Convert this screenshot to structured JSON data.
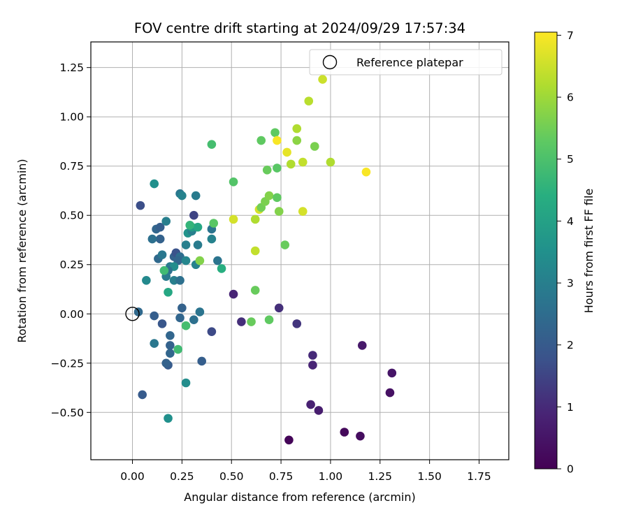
{
  "chart_data": {
    "type": "scatter",
    "title": "FOV centre drift starting at 2024/09/29 17:57:34",
    "xlabel": "Angular distance from reference (arcmin)",
    "ylabel": "Rotation from reference (arcmin)",
    "xlim": [
      -0.21,
      1.9
    ],
    "ylim": [
      -0.74,
      1.38
    ],
    "xticks": [
      "0.00",
      "0.25",
      "0.50",
      "0.75",
      "1.00",
      "1.25",
      "1.50",
      "1.75"
    ],
    "xtick_values": [
      0,
      0.25,
      0.5,
      0.75,
      1.0,
      1.25,
      1.5,
      1.75
    ],
    "yticks": [
      "−0.50",
      "−0.25",
      "0.00",
      "0.25",
      "0.50",
      "0.75",
      "1.00",
      "1.25"
    ],
    "ytick_values": [
      -0.5,
      -0.25,
      0,
      0.25,
      0.5,
      0.75,
      1.0,
      1.25
    ],
    "grid": true,
    "legend": {
      "label": "Reference platepar",
      "placement": "top-right",
      "marker": "open-circle"
    },
    "reference_point": {
      "x": 0.0,
      "y": 0.0
    },
    "colorbar": {
      "label": "Hours from first FF file",
      "colormap": "viridis",
      "range": [
        0,
        7.05
      ],
      "ticks": [
        "0",
        "1",
        "2",
        "3",
        "4",
        "5",
        "6",
        "7"
      ],
      "tick_values": [
        0,
        1,
        2,
        3,
        4,
        5,
        6,
        7
      ]
    },
    "series": [
      {
        "points": [
          {
            "x": 0.79,
            "y": -0.64,
            "h": 0.1
          },
          {
            "x": 1.07,
            "y": -0.6,
            "h": 0.2
          },
          {
            "x": 1.15,
            "y": -0.62,
            "h": 0.3
          },
          {
            "x": 1.3,
            "y": -0.4,
            "h": 0.4
          },
          {
            "x": 1.31,
            "y": -0.3,
            "h": 0.5
          },
          {
            "x": 1.16,
            "y": -0.16,
            "h": 0.6
          },
          {
            "x": 0.94,
            "y": -0.49,
            "h": 0.7
          },
          {
            "x": 0.9,
            "y": -0.46,
            "h": 0.8
          },
          {
            "x": 0.91,
            "y": -0.26,
            "h": 0.9
          },
          {
            "x": 0.91,
            "y": -0.21,
            "h": 1.0
          },
          {
            "x": 0.74,
            "y": 0.03,
            "h": 1.1
          },
          {
            "x": 0.83,
            "y": -0.05,
            "h": 1.2
          },
          {
            "x": 0.51,
            "y": 0.1,
            "h": 0.9
          },
          {
            "x": 0.55,
            "y": -0.04,
            "h": 1.1
          },
          {
            "x": 0.4,
            "y": -0.09,
            "h": 1.6
          },
          {
            "x": 0.31,
            "y": 0.5,
            "h": 1.5
          },
          {
            "x": 0.04,
            "y": 0.55,
            "h": 1.7
          },
          {
            "x": 0.35,
            "y": -0.24,
            "h": 2.1
          },
          {
            "x": 0.05,
            "y": -0.41,
            "h": 2.0
          },
          {
            "x": 0.18,
            "y": -0.26,
            "h": 2.0
          },
          {
            "x": 0.17,
            "y": -0.25,
            "h": 2.2
          },
          {
            "x": 0.19,
            "y": -0.2,
            "h": 2.3
          },
          {
            "x": 0.19,
            "y": -0.16,
            "h": 2.2
          },
          {
            "x": 0.19,
            "y": -0.11,
            "h": 2.3
          },
          {
            "x": 0.11,
            "y": -0.15,
            "h": 2.8
          },
          {
            "x": 0.15,
            "y": -0.05,
            "h": 1.9
          },
          {
            "x": 0.11,
            "y": -0.01,
            "h": 2.1
          },
          {
            "x": 0.03,
            "y": 0.01,
            "h": 2.4
          },
          {
            "x": 0.24,
            "y": -0.02,
            "h": 2.3
          },
          {
            "x": 0.25,
            "y": 0.03,
            "h": 2.2
          },
          {
            "x": 0.31,
            "y": -0.03,
            "h": 2.6
          },
          {
            "x": 0.34,
            "y": 0.01,
            "h": 2.7
          },
          {
            "x": 0.12,
            "y": 0.43,
            "h": 2.3
          },
          {
            "x": 0.14,
            "y": 0.44,
            "h": 2.1
          },
          {
            "x": 0.14,
            "y": 0.38,
            "h": 2.2
          },
          {
            "x": 0.1,
            "y": 0.38,
            "h": 2.6
          },
          {
            "x": 0.13,
            "y": 0.28,
            "h": 2.4
          },
          {
            "x": 0.15,
            "y": 0.3,
            "h": 2.8
          },
          {
            "x": 0.21,
            "y": 0.29,
            "h": 2.2
          },
          {
            "x": 0.22,
            "y": 0.31,
            "h": 1.8
          },
          {
            "x": 0.24,
            "y": 0.29,
            "h": 2.5
          },
          {
            "x": 0.23,
            "y": 0.27,
            "h": 2.3
          },
          {
            "x": 0.19,
            "y": 0.24,
            "h": 2.9
          },
          {
            "x": 0.21,
            "y": 0.24,
            "h": 3.4
          },
          {
            "x": 0.18,
            "y": 0.22,
            "h": 2.6
          },
          {
            "x": 0.17,
            "y": 0.19,
            "h": 2.9
          },
          {
            "x": 0.21,
            "y": 0.17,
            "h": 3.0
          },
          {
            "x": 0.24,
            "y": 0.17,
            "h": 2.6
          },
          {
            "x": 0.07,
            "y": 0.17,
            "h": 3.3
          },
          {
            "x": 0.17,
            "y": 0.47,
            "h": 3.0
          },
          {
            "x": 0.24,
            "y": 0.61,
            "h": 2.8
          },
          {
            "x": 0.25,
            "y": 0.6,
            "h": 3.1
          },
          {
            "x": 0.32,
            "y": 0.6,
            "h": 2.9
          },
          {
            "x": 0.28,
            "y": 0.41,
            "h": 3.6
          },
          {
            "x": 0.3,
            "y": 0.42,
            "h": 3.0
          },
          {
            "x": 0.3,
            "y": 0.44,
            "h": 3.8
          },
          {
            "x": 0.27,
            "y": 0.35,
            "h": 3.0
          },
          {
            "x": 0.33,
            "y": 0.35,
            "h": 2.9
          },
          {
            "x": 0.4,
            "y": 0.43,
            "h": 2.7
          },
          {
            "x": 0.4,
            "y": 0.38,
            "h": 3.1
          },
          {
            "x": 0.43,
            "y": 0.27,
            "h": 2.7
          },
          {
            "x": 0.27,
            "y": 0.27,
            "h": 3.2
          },
          {
            "x": 0.32,
            "y": 0.25,
            "h": 3.1
          },
          {
            "x": 0.11,
            "y": 0.66,
            "h": 3.5
          },
          {
            "x": 0.18,
            "y": 0.11,
            "h": 4.2
          },
          {
            "x": 0.23,
            "y": -0.18,
            "h": 4.8
          },
          {
            "x": 0.27,
            "y": -0.06,
            "h": 4.9
          },
          {
            "x": 0.27,
            "y": -0.35,
            "h": 3.4
          },
          {
            "x": 0.18,
            "y": -0.53,
            "h": 3.5
          },
          {
            "x": 0.16,
            "y": 0.22,
            "h": 4.8
          },
          {
            "x": 0.33,
            "y": 0.44,
            "h": 4.2
          },
          {
            "x": 0.29,
            "y": 0.45,
            "h": 4.6
          },
          {
            "x": 0.34,
            "y": 0.27,
            "h": 5.7
          },
          {
            "x": 0.41,
            "y": 0.46,
            "h": 5.2
          },
          {
            "x": 0.45,
            "y": 0.23,
            "h": 4.4
          },
          {
            "x": 0.4,
            "y": 0.86,
            "h": 4.9
          },
          {
            "x": 0.51,
            "y": 0.67,
            "h": 5.1
          },
          {
            "x": 0.51,
            "y": 0.48,
            "h": 6.6
          },
          {
            "x": 0.62,
            "y": 0.48,
            "h": 6.2
          },
          {
            "x": 0.62,
            "y": 0.32,
            "h": 6.4
          },
          {
            "x": 0.62,
            "y": 0.12,
            "h": 5.4
          },
          {
            "x": 0.6,
            "y": -0.04,
            "h": 5.4
          },
          {
            "x": 0.69,
            "y": -0.03,
            "h": 5.3
          },
          {
            "x": 0.64,
            "y": 0.53,
            "h": 6.6
          },
          {
            "x": 0.65,
            "y": 0.54,
            "h": 5.5
          },
          {
            "x": 0.67,
            "y": 0.57,
            "h": 5.6
          },
          {
            "x": 0.69,
            "y": 0.6,
            "h": 5.7
          },
          {
            "x": 0.73,
            "y": 0.59,
            "h": 5.3
          },
          {
            "x": 0.74,
            "y": 0.52,
            "h": 5.7
          },
          {
            "x": 0.77,
            "y": 0.35,
            "h": 5.4
          },
          {
            "x": 0.68,
            "y": 0.73,
            "h": 5.4
          },
          {
            "x": 0.73,
            "y": 0.74,
            "h": 5.2
          },
          {
            "x": 0.65,
            "y": 0.88,
            "h": 5.3
          },
          {
            "x": 0.72,
            "y": 0.92,
            "h": 5.3
          },
          {
            "x": 0.73,
            "y": 0.88,
            "h": 7.0
          },
          {
            "x": 0.78,
            "y": 0.82,
            "h": 6.8
          },
          {
            "x": 0.8,
            "y": 0.76,
            "h": 6.2
          },
          {
            "x": 0.86,
            "y": 0.77,
            "h": 6.4
          },
          {
            "x": 0.83,
            "y": 0.88,
            "h": 5.8
          },
          {
            "x": 0.83,
            "y": 0.94,
            "h": 6.2
          },
          {
            "x": 0.86,
            "y": 0.52,
            "h": 6.6
          },
          {
            "x": 0.92,
            "y": 0.85,
            "h": 5.6
          },
          {
            "x": 0.89,
            "y": 1.08,
            "h": 6.3
          },
          {
            "x": 0.96,
            "y": 1.19,
            "h": 6.5
          },
          {
            "x": 1.0,
            "y": 0.77,
            "h": 6.2
          },
          {
            "x": 1.18,
            "y": 0.72,
            "h": 7.0
          }
        ]
      }
    ]
  }
}
